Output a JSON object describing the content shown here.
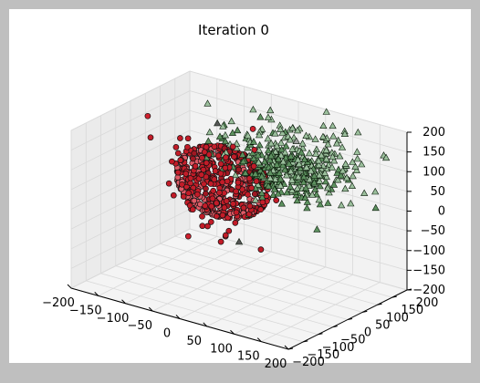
{
  "chart_data": {
    "type": "scatter",
    "projection": "3d",
    "title": "Iteration 0",
    "xlabel": "",
    "ylabel": "",
    "zlabel": "",
    "xlim": [
      -200,
      200
    ],
    "ylim": [
      -200,
      200
    ],
    "zlim": [
      -200,
      200
    ],
    "x_ticks": [
      -200,
      -150,
      -100,
      -50,
      0,
      50,
      100,
      150,
      200
    ],
    "y_ticks": [
      -200,
      -150,
      -100,
      -50,
      0,
      50,
      100,
      150,
      200
    ],
    "z_ticks": [
      -200,
      -150,
      -100,
      -50,
      0,
      50,
      100,
      150,
      200
    ],
    "x_tick_labels": [
      "−200",
      "−150",
      "−100",
      "−50",
      "0",
      "50",
      "100",
      "150",
      "200"
    ],
    "y_tick_labels": [
      "−200",
      "−150",
      "−100",
      "−50",
      "0",
      "50",
      "100",
      "150",
      "200"
    ],
    "z_tick_labels": [
      "−200",
      "−150",
      "−100",
      "−50",
      "0",
      "50",
      "100",
      "150",
      "200"
    ],
    "grid": true,
    "legend": "none",
    "series": [
      {
        "marker": "circle",
        "color": "#d0202e",
        "edge_color": "#000000",
        "description_points": "head-shaped point cloud",
        "center": [
          -30,
          0,
          60
        ],
        "spread": [
          80,
          55,
          85
        ],
        "outliers": [
          [
            -190,
            40,
            150
          ],
          [
            -110,
            30,
            -120
          ],
          [
            20,
            10,
            210
          ]
        ]
      },
      {
        "marker": "triangle",
        "color": "#2e7d32",
        "edge_color": "#000000",
        "center": [
          20,
          60,
          70
        ],
        "spread": [
          100,
          90,
          70
        ],
        "outliers": [
          [
            -40,
            0,
            205
          ],
          [
            100,
            10,
            210
          ],
          [
            0,
            0,
            -80
          ]
        ]
      }
    ]
  }
}
